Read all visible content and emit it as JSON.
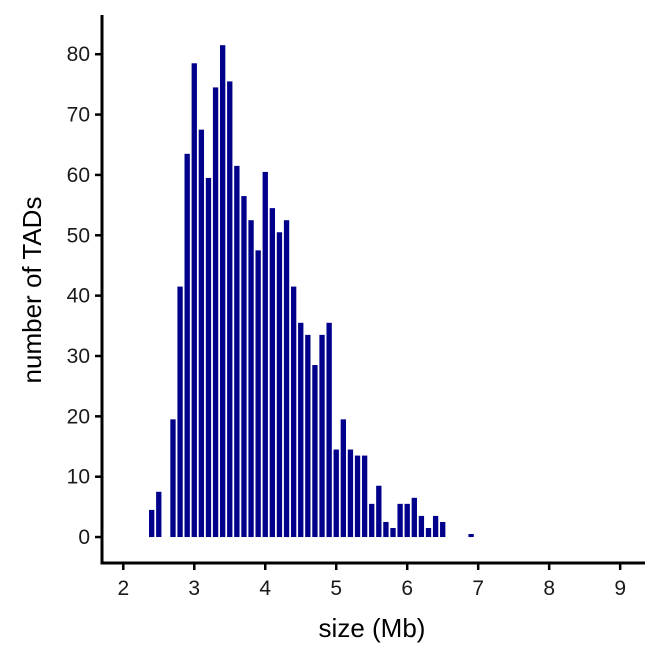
{
  "chart_data": {
    "type": "bar",
    "title": "",
    "xlabel": "size (Mb)",
    "ylabel": "number of TADs",
    "xlim": [
      1.7,
      9.35
    ],
    "ylim": [
      -4.3,
      86.5
    ],
    "xticks": [
      "2",
      "3",
      "4",
      "5",
      "6",
      "7",
      "8",
      "9"
    ],
    "yticks": [
      "0",
      "10",
      "20",
      "30",
      "40",
      "50",
      "60",
      "70",
      "80"
    ],
    "bar_width": 0.075,
    "color": "#00008b",
    "grid": false,
    "legend": "none",
    "x": [
      2.4,
      2.5,
      2.6,
      2.7,
      2.8,
      2.9,
      3.0,
      3.1,
      3.2,
      3.3,
      3.4,
      3.5,
      3.6,
      3.7,
      3.8,
      3.9,
      4.0,
      4.1,
      4.2,
      4.3,
      4.4,
      4.5,
      4.6,
      4.7,
      4.8,
      4.9,
      5.0,
      5.1,
      5.2,
      5.3,
      5.4,
      5.5,
      5.6,
      5.7,
      5.8,
      5.9,
      6.0,
      6.1,
      6.2,
      6.3,
      6.4,
      6.5,
      6.6,
      6.7,
      6.8,
      6.9,
      7.0,
      7.1,
      7.2,
      7.3,
      7.4,
      7.5,
      7.6,
      7.7,
      7.8,
      7.9,
      8.0,
      8.1,
      8.2,
      8.3,
      8.4,
      8.5
    ],
    "values": [
      4.5,
      7.5,
      0,
      19.5,
      41.5,
      63.5,
      78.5,
      67.5,
      59.5,
      74.5,
      81.5,
      75.5,
      61.5,
      56.5,
      52.5,
      47.5,
      60.5,
      54.5,
      50.5,
      52.5,
      41.5,
      35.5,
      33.5,
      28.5,
      33.5,
      35.5,
      14.5,
      19.5,
      14.5,
      13.5,
      13.5,
      5.5,
      8.5,
      2.5,
      1.5,
      5.5,
      5.5,
      6.5,
      3.5,
      1.5,
      3.5,
      2.5,
      0,
      0,
      0,
      0.5,
      0,
      0,
      0,
      0,
      0,
      0,
      0,
      0,
      0,
      0,
      0,
      0,
      0,
      0,
      0,
      0
    ]
  }
}
